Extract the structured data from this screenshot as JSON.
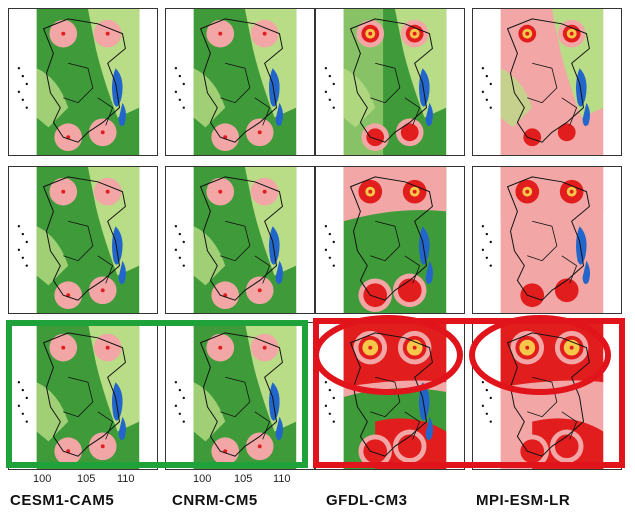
{
  "models": [
    "CESM1-CAM5",
    "CNRM-CM5",
    "GFDL-CM3",
    "MPI-ESM-LR"
  ],
  "x_ticks": [
    "100",
    "105",
    "110"
  ],
  "colors": {
    "dark_green": "#3f9b3a",
    "light_green": "#b9dc86",
    "pink": "#f2a6a6",
    "red": "#e11d1d",
    "yellow": "#f6c84a",
    "blue": "#2266cc",
    "highlight_green": "#1fa23a",
    "highlight_red": "#e0141a"
  },
  "rows": 3,
  "highlights": [
    {
      "color": "green",
      "row": 3,
      "columns": [
        "CESM1-CAM5",
        "CNRM-CM5"
      ]
    },
    {
      "color": "red",
      "row": 3,
      "columns": [
        "GFDL-CM3",
        "MPI-ESM-LR"
      ]
    }
  ]
}
